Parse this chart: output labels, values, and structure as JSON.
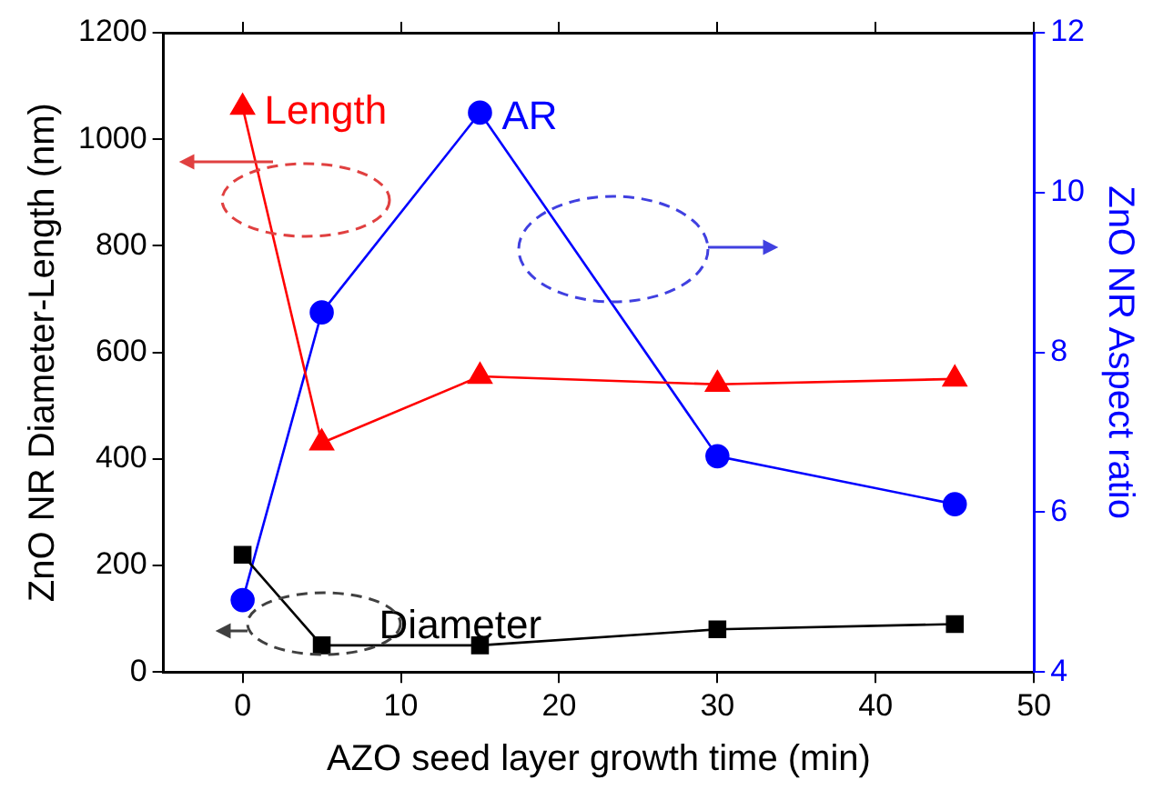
{
  "chart_data": {
    "type": "line",
    "xlabel": "AZO seed layer growth time (min)",
    "ylabel": "ZnO NR Diameter-Length (nm)",
    "y2label": "ZnO NR Aspect ratio",
    "x": [
      0,
      5,
      15,
      30,
      45
    ],
    "series": [
      {
        "name": "Diameter",
        "color": "#000000",
        "marker": "square",
        "values": [
          220,
          50,
          50,
          80,
          90
        ]
      },
      {
        "name": "Length",
        "color": "#ff0000",
        "marker": "triangle",
        "values": [
          1060,
          430,
          555,
          540,
          550
        ]
      },
      {
        "name": "AR",
        "color": "#0000ff",
        "marker": "circle",
        "axis": "y2",
        "values": [
          4.9,
          8.5,
          11.0,
          6.7,
          6.1
        ]
      }
    ],
    "xlim": [
      -5,
      50
    ],
    "xticks": [
      0,
      10,
      20,
      30,
      40,
      50
    ],
    "ylim": [
      0,
      1200
    ],
    "yticks": [
      0,
      200,
      400,
      600,
      800,
      1000,
      1200
    ],
    "y2lim": [
      4,
      12
    ],
    "y2ticks": [
      4,
      6,
      8,
      10,
      12
    ],
    "grid": false,
    "legend": false
  }
}
